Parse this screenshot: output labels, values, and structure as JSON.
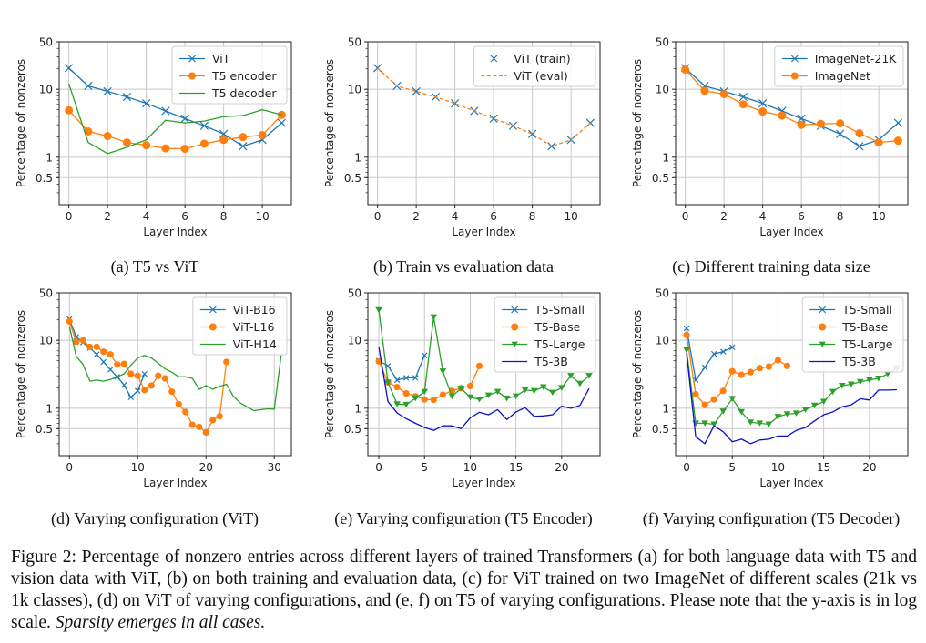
{
  "chart_data": [
    {
      "id": "a",
      "type": "line",
      "title": "",
      "xlabel": "Layer Index",
      "ylabel": "Percentage of nonzeros",
      "yscale": "log",
      "ylim": [
        0.2,
        50
      ],
      "xlim": [
        -0.5,
        11.5
      ],
      "xticks": [
        0,
        2,
        4,
        6,
        8,
        10
      ],
      "yticks": [
        0.5,
        1,
        10,
        50
      ],
      "ytick_labels": [
        "0.5",
        "1",
        "10",
        "50"
      ],
      "grid": true,
      "legend": "top-right",
      "series": [
        {
          "name": "ViT",
          "color": "#1f77b4",
          "marker": "x",
          "linestyle": "solid",
          "x": [
            0,
            1,
            2,
            3,
            4,
            5,
            6,
            7,
            8,
            9,
            10,
            11
          ],
          "y": [
            20.5,
            11.2,
            9.3,
            7.7,
            6.2,
            4.8,
            3.7,
            2.9,
            2.2,
            1.45,
            1.8,
            3.2
          ]
        },
        {
          "name": "T5 encoder",
          "color": "#ff7f0e",
          "marker": "o",
          "linestyle": "solid",
          "x": [
            0,
            1,
            2,
            3,
            4,
            5,
            6,
            7,
            8,
            9,
            10,
            11
          ],
          "y": [
            4.9,
            2.4,
            2.05,
            1.65,
            1.5,
            1.35,
            1.33,
            1.58,
            1.8,
            1.98,
            2.12,
            4.2
          ]
        },
        {
          "name": "T5 decoder",
          "color": "#2ca02c",
          "marker": "none",
          "linestyle": "solid",
          "x": [
            0,
            1,
            2,
            3,
            4,
            5,
            6,
            7,
            8,
            9,
            10,
            11
          ],
          "y": [
            12.0,
            1.65,
            1.13,
            1.4,
            1.8,
            3.5,
            3.2,
            3.4,
            3.95,
            4.1,
            5.0,
            4.2
          ]
        }
      ]
    },
    {
      "id": "b",
      "type": "line",
      "title": "",
      "xlabel": "Layer Index",
      "ylabel": "Percentage of nonzeros",
      "yscale": "log",
      "ylim": [
        0.2,
        50
      ],
      "xlim": [
        -0.5,
        11.5
      ],
      "xticks": [
        0,
        2,
        4,
        6,
        8,
        10
      ],
      "yticks": [
        0.5,
        1,
        10,
        50
      ],
      "ytick_labels": [
        "0.5",
        "1",
        "10",
        "50"
      ],
      "grid": true,
      "legend": "top-right",
      "series": [
        {
          "name": "ViT (train)",
          "color": "#1f77b4",
          "marker": "x",
          "linestyle": "none",
          "x": [
            0,
            1,
            2,
            3,
            4,
            5,
            6,
            7,
            8,
            9,
            10,
            11
          ],
          "y": [
            20.5,
            11.2,
            9.3,
            7.7,
            6.2,
            4.8,
            3.7,
            2.9,
            2.2,
            1.45,
            1.8,
            3.2
          ]
        },
        {
          "name": "ViT (eval)",
          "color": "#ff7f0e",
          "marker": "none",
          "linestyle": "dashed",
          "x": [
            0,
            1,
            2,
            3,
            4,
            5,
            6,
            7,
            8,
            9,
            10,
            11
          ],
          "y": [
            20.5,
            11.2,
            9.3,
            7.7,
            6.2,
            4.8,
            3.7,
            2.9,
            2.2,
            1.45,
            1.8,
            3.2
          ]
        }
      ]
    },
    {
      "id": "c",
      "type": "line",
      "title": "",
      "xlabel": "Layer Index",
      "ylabel": "Percentage of nonzeros",
      "yscale": "log",
      "ylim": [
        0.2,
        50
      ],
      "xlim": [
        -0.5,
        11.5
      ],
      "xticks": [
        0,
        2,
        4,
        6,
        8,
        10
      ],
      "yticks": [
        0.5,
        1,
        10,
        50
      ],
      "ytick_labels": [
        "0.5",
        "1",
        "10",
        "50"
      ],
      "grid": true,
      "legend": "top-right",
      "series": [
        {
          "name": "ImageNet-21K",
          "color": "#1f77b4",
          "marker": "x",
          "linestyle": "solid",
          "x": [
            0,
            1,
            2,
            3,
            4,
            5,
            6,
            7,
            8,
            9,
            10,
            11
          ],
          "y": [
            20.5,
            11.2,
            9.3,
            7.7,
            6.2,
            4.8,
            3.7,
            2.9,
            2.2,
            1.45,
            1.8,
            3.2
          ]
        },
        {
          "name": "ImageNet",
          "color": "#ff7f0e",
          "marker": "o",
          "linestyle": "solid",
          "x": [
            0,
            1,
            2,
            3,
            4,
            5,
            6,
            7,
            8,
            9,
            10,
            11
          ],
          "y": [
            19.5,
            9.5,
            8.5,
            6.0,
            4.7,
            4.1,
            3.0,
            3.1,
            3.15,
            2.25,
            1.65,
            1.75
          ]
        }
      ]
    },
    {
      "id": "d",
      "type": "line",
      "title": "",
      "xlabel": "Layer Index",
      "ylabel": "Percentage of nonzeros",
      "yscale": "log",
      "ylim": [
        0.2,
        50
      ],
      "xlim": [
        -1.5,
        32.5
      ],
      "xticks": [
        0,
        10,
        20,
        30
      ],
      "yticks": [
        0.5,
        1,
        10,
        50
      ],
      "ytick_labels": [
        "0.5",
        "1",
        "10",
        "50"
      ],
      "grid": true,
      "legend": "top-right",
      "series": [
        {
          "name": "ViT-B16",
          "color": "#1f77b4",
          "marker": "x",
          "linestyle": "solid",
          "x": [
            0,
            1,
            2,
            3,
            4,
            5,
            6,
            7,
            8,
            9,
            10,
            11
          ],
          "y": [
            20.5,
            11.2,
            9.3,
            7.7,
            6.2,
            4.8,
            3.7,
            2.9,
            2.2,
            1.45,
            1.8,
            3.2
          ]
        },
        {
          "name": "ViT-L16",
          "color": "#ff7f0e",
          "marker": "o",
          "linestyle": "solid",
          "x": [
            0,
            1,
            2,
            3,
            4,
            5,
            6,
            7,
            8,
            9,
            10,
            11,
            12,
            13,
            14,
            15,
            16,
            17,
            18,
            19,
            20,
            21,
            22,
            23
          ],
          "y": [
            19,
            9.5,
            10,
            8,
            8,
            6.8,
            6.2,
            4.4,
            4.5,
            3.2,
            3.0,
            1.85,
            2.15,
            3.0,
            2.75,
            1.75,
            1.15,
            0.88,
            0.57,
            0.53,
            0.44,
            0.67,
            0.76,
            4.8
          ]
        },
        {
          "name": "ViT-H14",
          "color": "#2ca02c",
          "marker": "none",
          "linestyle": "solid",
          "x": [
            0,
            1,
            2,
            3,
            4,
            5,
            6,
            7,
            8,
            9,
            10,
            11,
            12,
            13,
            14,
            15,
            16,
            17,
            18,
            19,
            20,
            21,
            22,
            23,
            24,
            25,
            26,
            27,
            28,
            29,
            30,
            31
          ],
          "y": [
            16,
            5.8,
            4.4,
            2.5,
            2.6,
            2.5,
            2.65,
            2.9,
            3.2,
            4.3,
            5.5,
            6.0,
            5.5,
            4.6,
            3.8,
            3.4,
            2.9,
            2.9,
            2.75,
            1.9,
            2.15,
            1.9,
            2.1,
            2.25,
            1.5,
            1.2,
            1.05,
            0.92,
            0.95,
            0.98,
            0.97,
            6.0
          ]
        }
      ]
    },
    {
      "id": "e",
      "type": "line",
      "title": "",
      "xlabel": "Layer Index",
      "ylabel": "Percentage of nonzeros",
      "yscale": "log",
      "ylim": [
        0.2,
        50
      ],
      "xlim": [
        -1.2,
        24.2
      ],
      "xticks": [
        0,
        5,
        10,
        15,
        20
      ],
      "yticks": [
        0.5,
        1,
        10,
        50
      ],
      "ytick_labels": [
        "0.5",
        "1",
        "10",
        "50"
      ],
      "grid": true,
      "legend": "top-right",
      "series": [
        {
          "name": "T5-Small",
          "color": "#1f77b4",
          "marker": "x",
          "linestyle": "solid",
          "x": [
            0,
            1,
            2,
            3,
            4,
            5
          ],
          "y": [
            5.0,
            4.2,
            2.6,
            2.8,
            2.8,
            6.0
          ]
        },
        {
          "name": "T5-Base",
          "color": "#ff7f0e",
          "marker": "o",
          "linestyle": "solid",
          "x": [
            0,
            1,
            2,
            3,
            4,
            5,
            6,
            7,
            8,
            9,
            10,
            11
          ],
          "y": [
            4.9,
            2.4,
            2.05,
            1.65,
            1.5,
            1.35,
            1.33,
            1.58,
            1.8,
            1.98,
            2.12,
            4.2
          ]
        },
        {
          "name": "T5-Large",
          "color": "#2ca02c",
          "marker": "v",
          "linestyle": "solid",
          "x": [
            0,
            1,
            2,
            3,
            4,
            5,
            6,
            7,
            8,
            9,
            10,
            11,
            12,
            13,
            14,
            15,
            16,
            17,
            18,
            19,
            20,
            21,
            22,
            23
          ],
          "y": [
            28,
            2.4,
            1.15,
            1.13,
            1.4,
            1.75,
            22,
            3.5,
            1.5,
            1.95,
            1.45,
            1.35,
            1.55,
            1.75,
            1.4,
            1.5,
            1.85,
            1.8,
            2.05,
            1.7,
            2.0,
            3.0,
            2.3,
            3.0
          ]
        },
        {
          "name": "T5-3B",
          "color": "#1010cc",
          "marker": "none",
          "linestyle": "solid",
          "x": [
            0,
            1,
            2,
            3,
            4,
            5,
            6,
            7,
            8,
            9,
            10,
            11,
            12,
            13,
            14,
            15,
            16,
            17,
            18,
            19,
            20,
            21,
            22,
            23
          ],
          "y": [
            8.0,
            1.25,
            0.85,
            0.7,
            0.6,
            0.52,
            0.47,
            0.55,
            0.55,
            0.5,
            0.72,
            0.87,
            0.8,
            0.95,
            0.68,
            0.88,
            1.02,
            0.76,
            0.77,
            0.8,
            1.07,
            1.0,
            1.1,
            1.95
          ]
        }
      ]
    },
    {
      "id": "f",
      "type": "line",
      "title": "",
      "xlabel": "Layer Index",
      "ylabel": "Percentage of nonzeros",
      "yscale": "log",
      "ylim": [
        0.2,
        50
      ],
      "xlim": [
        -1.2,
        24.2
      ],
      "xticks": [
        0,
        5,
        10,
        15,
        20
      ],
      "yticks": [
        0.5,
        1,
        10,
        50
      ],
      "ytick_labels": [
        "0.5",
        "1",
        "10",
        "50"
      ],
      "grid": true,
      "legend": "top-right",
      "series": [
        {
          "name": "T5-Small",
          "color": "#1f77b4",
          "marker": "x",
          "linestyle": "solid",
          "x": [
            0,
            1,
            2,
            3,
            4,
            5
          ],
          "y": [
            15,
            2.6,
            4.0,
            6.3,
            6.8,
            7.9
          ]
        },
        {
          "name": "T5-Base",
          "color": "#ff7f0e",
          "marker": "o",
          "linestyle": "solid",
          "x": [
            0,
            1,
            2,
            3,
            4,
            5,
            6,
            7,
            8,
            9,
            10,
            11
          ],
          "y": [
            12,
            1.6,
            1.12,
            1.35,
            1.8,
            3.5,
            3.1,
            3.4,
            3.9,
            4.1,
            5.1,
            4.2
          ]
        },
        {
          "name": "T5-Large",
          "color": "#2ca02c",
          "marker": "v",
          "linestyle": "solid",
          "x": [
            0,
            1,
            2,
            3,
            4,
            5,
            6,
            7,
            8,
            9,
            10,
            11,
            12,
            13,
            14,
            15,
            16,
            17,
            18,
            19,
            20,
            21,
            22,
            23
          ],
          "y": [
            7.2,
            0.6,
            0.6,
            0.58,
            0.9,
            1.38,
            0.88,
            0.62,
            0.6,
            0.58,
            0.75,
            0.82,
            0.84,
            0.95,
            1.1,
            1.25,
            1.75,
            2.15,
            2.25,
            2.45,
            2.6,
            2.75,
            3.2,
            3.9
          ]
        },
        {
          "name": "T5-3B",
          "color": "#1010cc",
          "marker": "none",
          "linestyle": "solid",
          "x": [
            0,
            1,
            2,
            3,
            4,
            5,
            6,
            7,
            8,
            9,
            10,
            11,
            12,
            13,
            14,
            15,
            16,
            17,
            18,
            19,
            20,
            21,
            22,
            23
          ],
          "y": [
            6.5,
            0.38,
            0.3,
            0.55,
            0.45,
            0.32,
            0.35,
            0.3,
            0.34,
            0.35,
            0.39,
            0.39,
            0.47,
            0.52,
            0.65,
            0.8,
            0.88,
            1.05,
            1.12,
            1.38,
            1.32,
            1.85,
            1.85,
            1.87
          ]
        }
      ]
    }
  ],
  "subcaptions": [
    "(a) T5 vs ViT",
    "(b) Train vs evaluation data",
    "(c) Different training data size",
    "(d) Varying configuration (ViT)",
    "(e) Varying configuration (T5 Encoder)",
    "(f) Varying configuration (T5 Decoder)"
  ],
  "figure_caption": {
    "main": "Figure 2: Percentage of nonzero entries across different layers of trained Transformers (a) for both language data with T5 and vision data with ViT, (b) on both training and evaluation data, (c) for ViT trained on two ImageNet of different scales (21k vs 1k classes), (d) on ViT of varying configurations, and (e, f) on T5 of varying configurations. Please note that the y-axis is in log scale.",
    "emphasis": "Sparsity emerges in all cases."
  }
}
